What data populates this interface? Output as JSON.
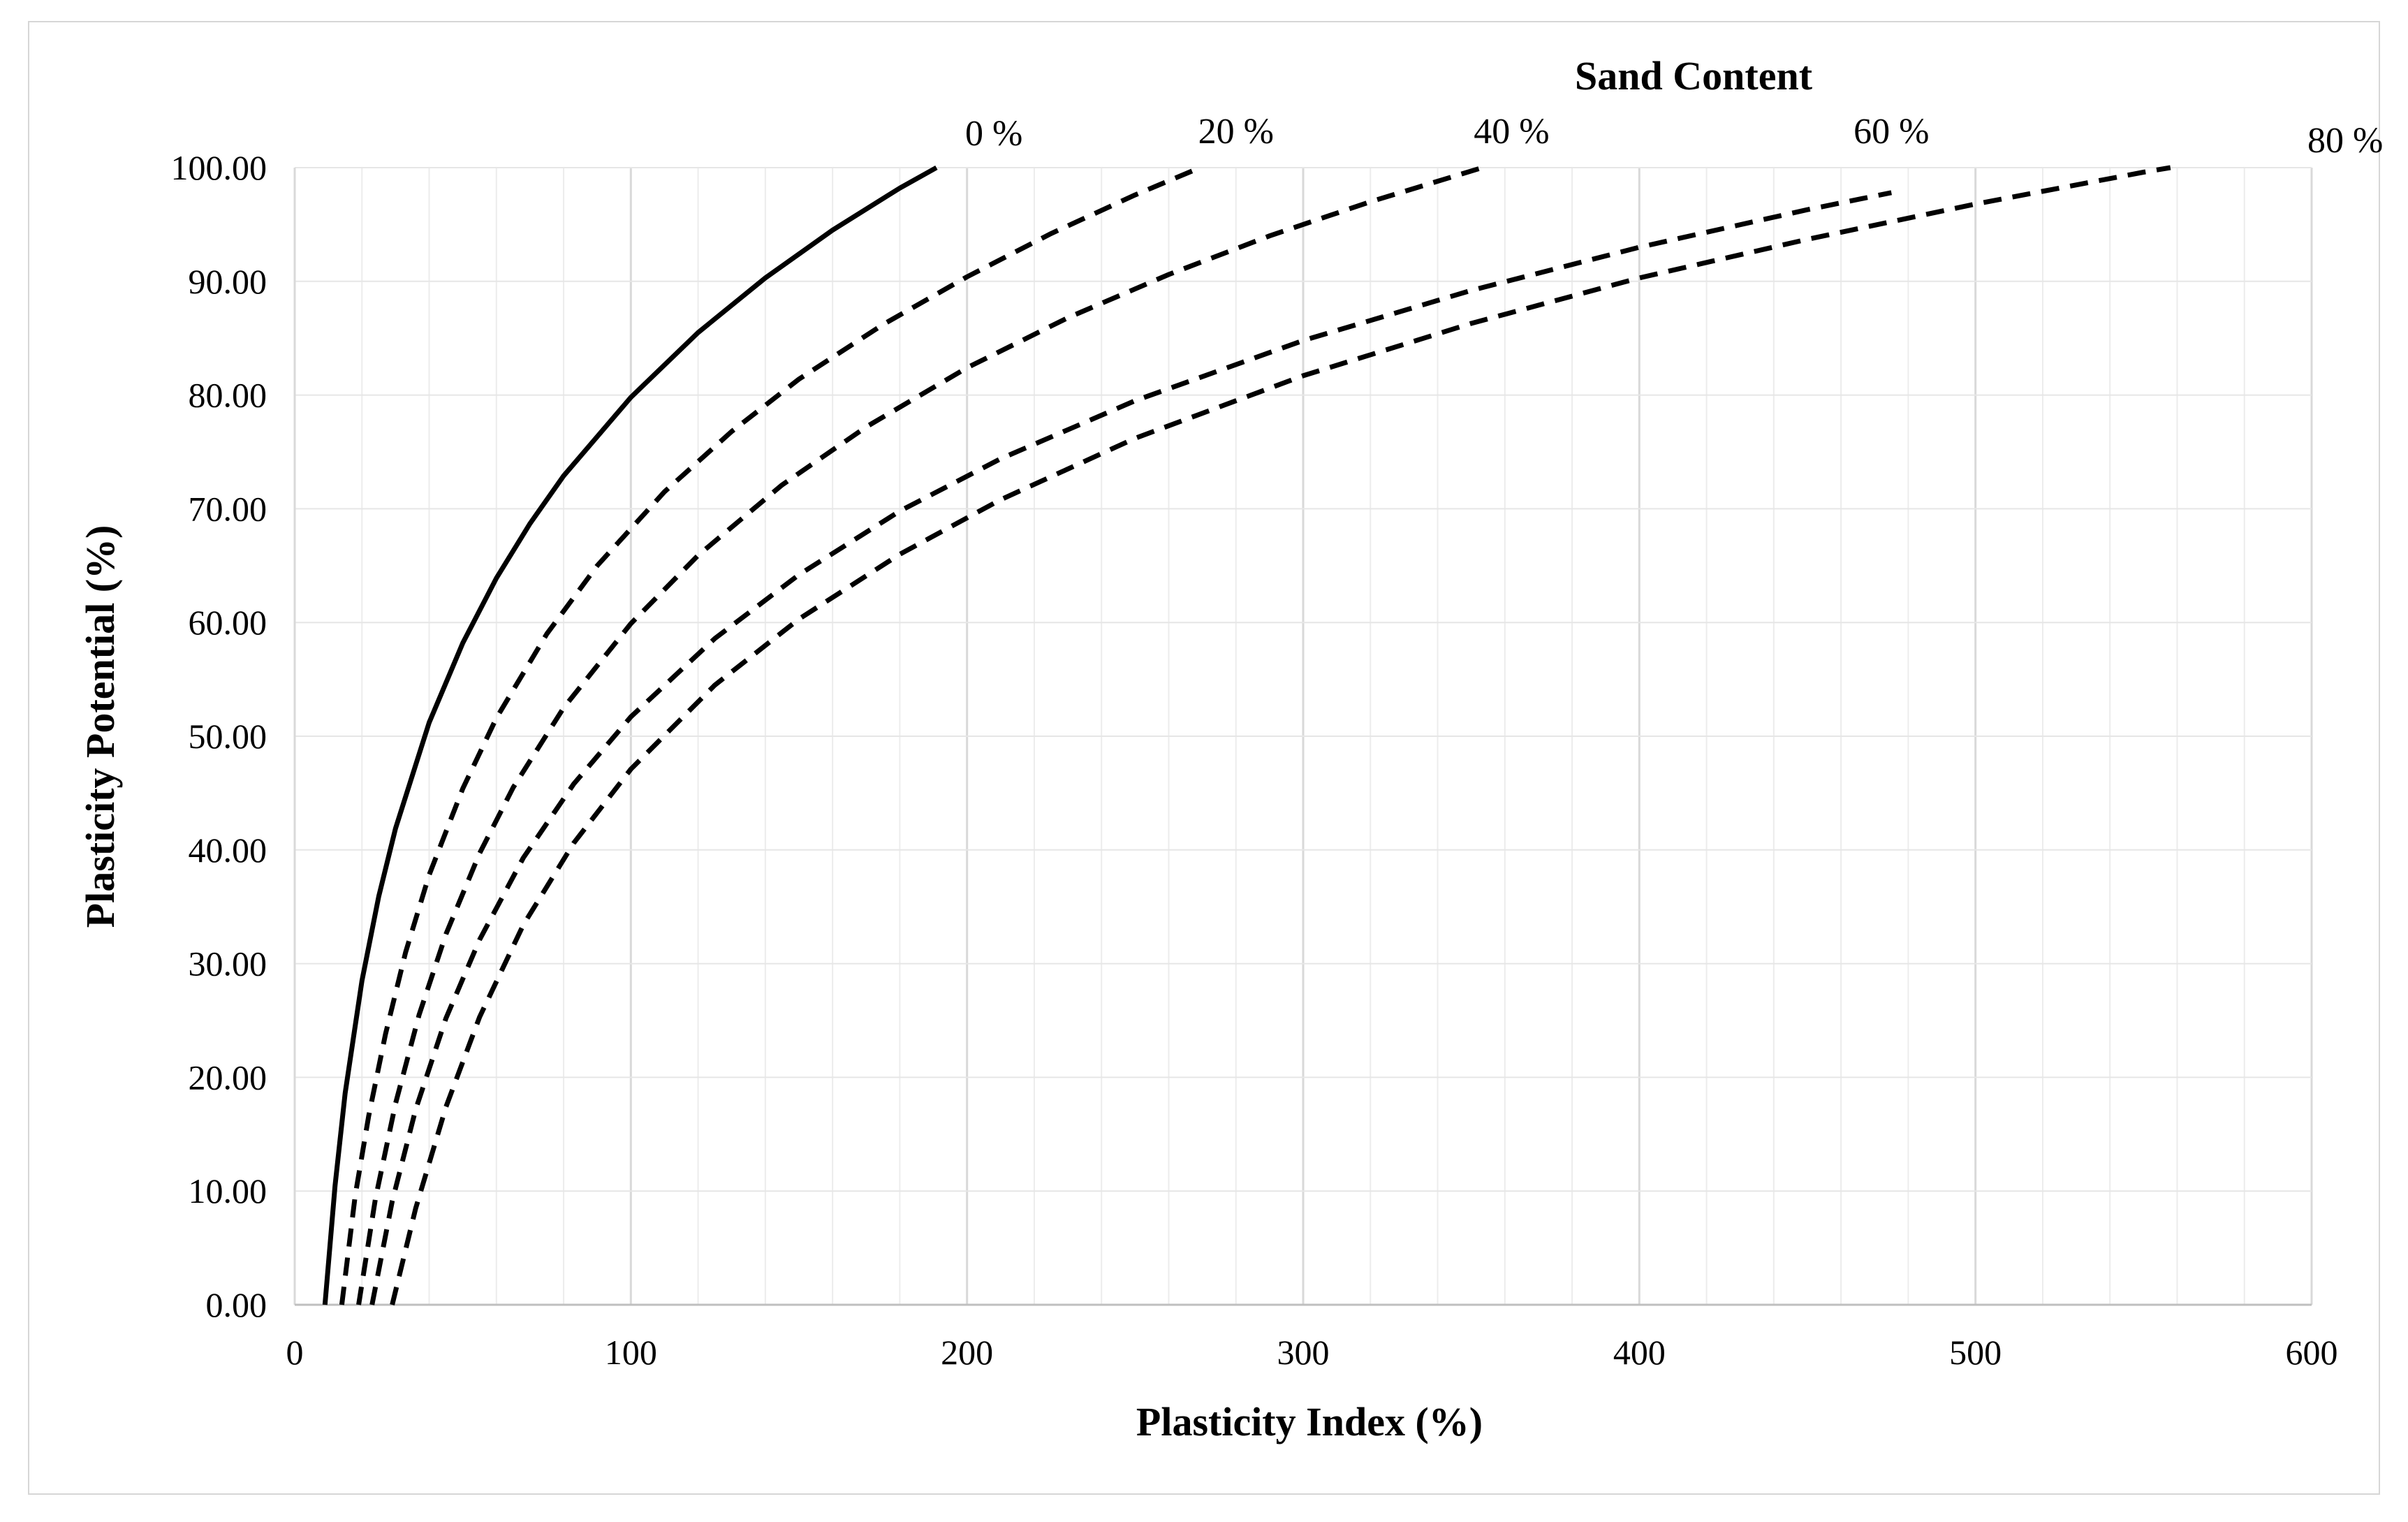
{
  "chart_data": {
    "type": "line",
    "title": "",
    "xlabel": "Plasticity Index (%)",
    "ylabel": "Plasticity Potential (%)",
    "xlim": [
      0,
      600
    ],
    "ylim": [
      0,
      100
    ],
    "x_ticks": [
      "0",
      "100",
      "200",
      "300",
      "400",
      "500",
      "600"
    ],
    "y_ticks": [
      "0.00",
      "10.00",
      "20.00",
      "30.00",
      "40.00",
      "50.00",
      "60.00",
      "70.00",
      "80.00",
      "90.00",
      "100.00"
    ],
    "grid": true,
    "legend_title": "Sand Content",
    "series": [
      {
        "name": "0 %",
        "style": "solid",
        "x": [
          9,
          12,
          15,
          20,
          25,
          30,
          40,
          50,
          60,
          70,
          80,
          100,
          120,
          140,
          160,
          180,
          200,
          207
        ],
        "y": [
          0,
          10.5,
          18.6,
          28.5,
          35.9,
          41.9,
          51.2,
          58.2,
          63.9,
          68.7,
          72.9,
          79.8,
          85.5,
          90.3,
          94.5,
          98.2,
          101.5,
          102.5
        ]
      },
      {
        "name": "20 %",
        "style": "dashed",
        "x": [
          14,
          18,
          22,
          27,
          33,
          40,
          50,
          60,
          75,
          90,
          110,
          130,
          150,
          175,
          200,
          225,
          250,
          275
        ],
        "y": [
          0,
          9.6,
          16.6,
          23.8,
          31.0,
          37.8,
          45.4,
          51.6,
          59.0,
          65.0,
          71.5,
          76.8,
          81.4,
          86.2,
          90.4,
          94.2,
          97.6,
          100.7
        ]
      },
      {
        "name": "40 %",
        "style": "dashed",
        "x": [
          19,
          24,
          30,
          37,
          45,
          55,
          65,
          80,
          100,
          120,
          145,
          170,
          200,
          230,
          260,
          290,
          320,
          360
        ],
        "y": [
          0,
          9.3,
          17.7,
          25.5,
          32.6,
          39.7,
          45.5,
          52.5,
          59.9,
          65.9,
          72.1,
          77.2,
          82.4,
          86.8,
          90.6,
          94.0,
          97.0,
          100.6
        ]
      },
      {
        "name": "60 %",
        "style": "dashed",
        "x": [
          23,
          29,
          36,
          45,
          55,
          68,
          83,
          100,
          125,
          150,
          180,
          210,
          250,
          300,
          350,
          400,
          450,
          475
        ],
        "y": [
          0,
          9.1,
          17.2,
          25.2,
          32.1,
          39.3,
          45.8,
          51.7,
          58.6,
          64.2,
          69.8,
          74.4,
          79.5,
          84.8,
          89.2,
          93.0,
          96.3,
          97.8
        ]
      },
      {
        "name": "80 %",
        "style": "dashed",
        "x": [
          29,
          36,
          45,
          55,
          68,
          83,
          100,
          125,
          150,
          180,
          210,
          250,
          300,
          350,
          400,
          450,
          500,
          550,
          600
        ],
        "y": [
          0,
          8.5,
          17.4,
          25.3,
          33.4,
          40.6,
          47.1,
          54.5,
          60.3,
          66.0,
          70.8,
          76.2,
          81.7,
          86.3,
          90.3,
          93.7,
          96.8,
          99.6,
          102.1
        ]
      }
    ]
  }
}
